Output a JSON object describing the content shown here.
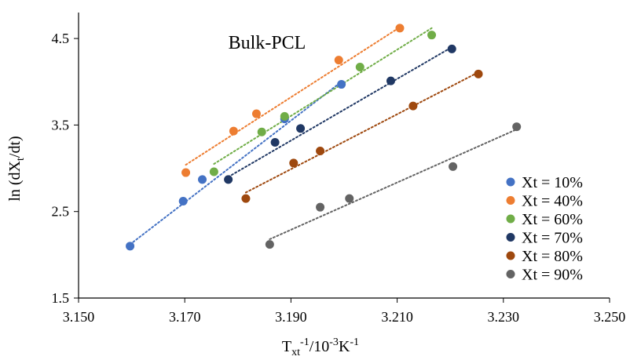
{
  "chart_data": {
    "type": "scatter",
    "title": "Bulk-PCL",
    "xlabel": {
      "main": "T",
      "sub": "xt",
      "sup1": "-1",
      "mid": "/10",
      "sup2": "-3",
      "tail": "K",
      "sup3": "-1"
    },
    "ylabel": {
      "main": "ln (dX",
      "sub": "t",
      "tail": "/dt)"
    },
    "xlim": [
      3.15,
      3.25
    ],
    "ylim": [
      1.5,
      4.8
    ],
    "xticks": [
      "3.150",
      "3.170",
      "3.190",
      "3.210",
      "3.230",
      "3.250"
    ],
    "yticks": [
      "1.5",
      "2.5",
      "3.5",
      "4.5"
    ],
    "legend_position": "bottom-right",
    "series": [
      {
        "name": "Xt = 10%",
        "color": "#4472C4",
        "x": [
          3.1597,
          3.1697,
          3.1733,
          3.1888,
          3.1995
        ],
        "y": [
          2.1,
          2.62,
          2.87,
          3.57,
          3.97
        ],
        "trend": {
          "x": [
            3.1597,
            3.1995
          ],
          "y": [
            2.12,
            4.0
          ]
        }
      },
      {
        "name": "Xt = 40%",
        "color": "#ED7D31",
        "x": [
          3.1702,
          3.1792,
          3.1835,
          3.199,
          3.2105
        ],
        "y": [
          2.95,
          3.43,
          3.63,
          4.25,
          4.62
        ],
        "trend": {
          "x": [
            3.1702,
            3.2105
          ],
          "y": [
            3.04,
            4.63
          ]
        }
      },
      {
        "name": "Xt = 60%",
        "color": "#70AD47",
        "x": [
          3.1755,
          3.1845,
          3.1888,
          3.203,
          3.2165
        ],
        "y": [
          2.96,
          3.42,
          3.6,
          4.17,
          4.54
        ],
        "trend": {
          "x": [
            3.1755,
            3.2165
          ],
          "y": [
            3.05,
            4.62
          ]
        }
      },
      {
        "name": "Xt = 70%",
        "color": "#203864",
        "x": [
          3.1782,
          3.187,
          3.1918,
          3.2088,
          3.2203
        ],
        "y": [
          2.87,
          3.3,
          3.46,
          4.01,
          4.38
        ],
        "trend": {
          "x": [
            3.1782,
            3.2203
          ],
          "y": [
            2.9,
            4.4
          ]
        }
      },
      {
        "name": "Xt = 80%",
        "color": "#9E480E",
        "x": [
          3.1815,
          3.1905,
          3.1955,
          3.213,
          3.2253
        ],
        "y": [
          2.65,
          3.06,
          3.2,
          3.72,
          4.09
        ],
        "trend": {
          "x": [
            3.1815,
            3.2253
          ],
          "y": [
            2.72,
            4.11
          ]
        }
      },
      {
        "name": "Xt = 90%",
        "color": "#636363",
        "x": [
          3.186,
          3.1955,
          3.201,
          3.2205,
          3.2325
        ],
        "y": [
          2.12,
          2.55,
          2.65,
          3.02,
          3.48
        ],
        "trend": {
          "x": [
            3.186,
            3.2325
          ],
          "y": [
            2.18,
            3.45
          ]
        }
      }
    ]
  }
}
